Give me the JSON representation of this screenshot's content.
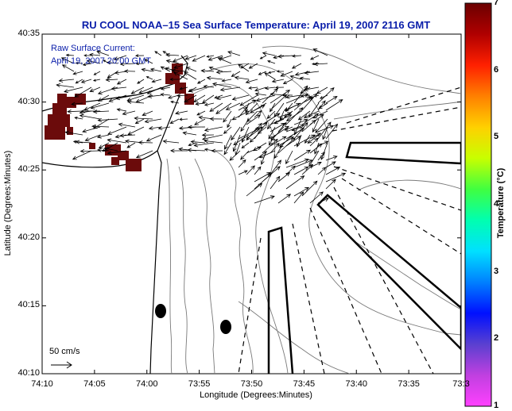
{
  "title": "RU COOL  NOAA–15  Sea Surface Temperature:  April 19, 2007 2116 GMT",
  "inset": {
    "line1": "Raw Surface Current:",
    "line2": "April 19, 2007 20:00 GMT"
  },
  "scale_label": "50 cm/s",
  "axes": {
    "xlabel": "Longitude (Degrees:Minutes)",
    "ylabel": "Latitude (Degrees:Minutes)",
    "xticks": [
      "74:10",
      "74:05",
      "74:00",
      "73:55",
      "73:50",
      "73:45",
      "73:40",
      "73:35",
      "73:3"
    ],
    "yticks": [
      "40:35",
      "40:30",
      "40:25",
      "40:20",
      "40:15",
      "40:10"
    ]
  },
  "colorbar": {
    "label": "Temperature (°C)",
    "ticks": [
      "7",
      "6",
      "5",
      "4",
      "3",
      "2",
      "1"
    ],
    "colors": [
      "#6b0000",
      "#b00000",
      "#ff2000",
      "#ff8000",
      "#ffd000",
      "#c8ff00",
      "#40ff40",
      "#00ffb0",
      "#00e0ff",
      "#0080ff",
      "#0010ff",
      "#5a40d0",
      "#c040e0",
      "#ff40ff"
    ]
  },
  "map": {
    "sst_color": "#6b0b0b",
    "grid": false
  }
}
